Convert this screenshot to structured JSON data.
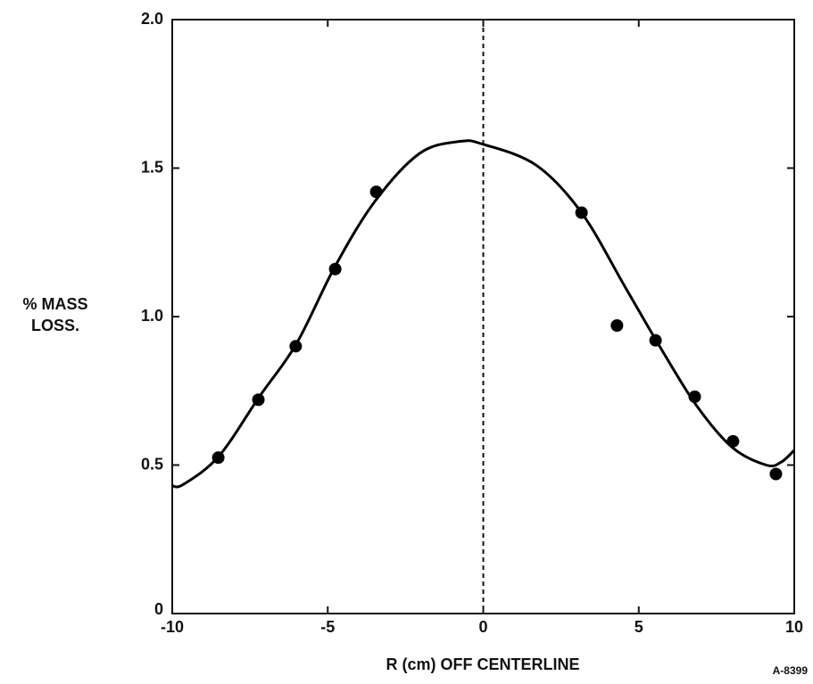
{
  "chart_data": {
    "type": "scatter",
    "xlabel": "R (cm) OFF CENTERLINE",
    "ylabel": [
      "% MASS",
      "LOSS."
    ],
    "annotation": "A-8399",
    "xlim": [
      -10,
      10
    ],
    "xticks": [
      -10,
      -5,
      0,
      5,
      10
    ],
    "ylim": [
      0,
      2
    ],
    "yticks": [
      0,
      0.5,
      {
        "value": 1,
        "label": "1.0"
      },
      1.5,
      {
        "value": 2,
        "label": "2.0"
      }
    ],
    "series": [
      {
        "type": "scatter",
        "color": "#000000",
        "x": [
          -8.52,
          -7.23,
          -6.03,
          -4.76,
          -3.44,
          3.16,
          4.3,
          5.54,
          6.8,
          8.03,
          9.41
        ],
        "values": [
          0.525,
          0.72,
          0.9,
          1.16,
          1.42,
          1.35,
          0.97,
          0.92,
          0.73,
          0.58,
          0.47
        ]
      },
      {
        "type": "line",
        "color": "#000000",
        "x": [
          -10,
          -9.64,
          -8.5,
          -7.2,
          -6.0,
          -4.76,
          -3.47,
          -2.04,
          -0.75,
          0,
          1.7,
          3.16,
          4.56,
          5.7,
          6.86,
          8.0,
          9.1,
          9.58,
          10
        ],
        "values": [
          0.43,
          0.435,
          0.53,
          0.73,
          0.91,
          1.17,
          1.39,
          1.55,
          1.59,
          1.58,
          1.51,
          1.35,
          1.1,
          0.895,
          0.7,
          0.56,
          0.5,
          0.51,
          0.55
        ]
      }
    ]
  }
}
